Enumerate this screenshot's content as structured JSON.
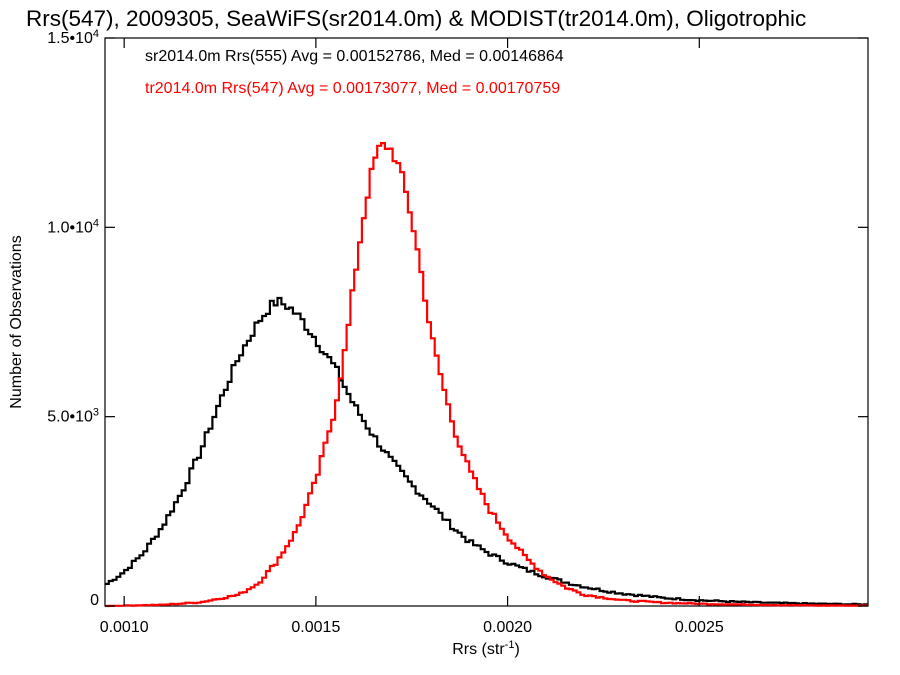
{
  "chart_data": {
    "type": "line",
    "title": "Rrs(547), 2009305, SeaWiFS(sr2014.0m) & MODIST(tr2014.0m), Oligotrophic",
    "xlabel": {
      "main": "Rrs (str",
      "sup": "-1",
      "close": ")"
    },
    "ylabel": "Number of Observations",
    "xlim": [
      0.00095,
      0.00294
    ],
    "ylim": [
      0,
      15000
    ],
    "x_ticks": [
      {
        "value": 0.001,
        "label": "0.0010"
      },
      {
        "value": 0.0015,
        "label": "0.0015"
      },
      {
        "value": 0.002,
        "label": "0.0020"
      },
      {
        "value": 0.0025,
        "label": "0.0025"
      }
    ],
    "y_ticks": [
      {
        "value": 0,
        "base": "0",
        "exp": ""
      },
      {
        "value": 5000,
        "base": "5.0•10",
        "exp": "3"
      },
      {
        "value": 10000,
        "base": "1.0•10",
        "exp": "4"
      },
      {
        "value": 15000,
        "base": "1.5•10",
        "exp": "4"
      }
    ],
    "series": [
      {
        "name": "sr2014.0m Rrs(555) Avg = 0.00152786, Med = 0.00146864",
        "color": "#000000",
        "points": [
          [
            0.00095,
            550
          ],
          [
            0.001,
            900
          ],
          [
            0.00105,
            1400
          ],
          [
            0.0011,
            2100
          ],
          [
            0.00115,
            3000
          ],
          [
            0.0012,
            4100
          ],
          [
            0.00125,
            5400
          ],
          [
            0.0013,
            6600
          ],
          [
            0.00135,
            7500
          ],
          [
            0.00138,
            7900
          ],
          [
            0.0014,
            8050
          ],
          [
            0.00143,
            7900
          ],
          [
            0.00146,
            7600
          ],
          [
            0.0015,
            7050
          ],
          [
            0.00155,
            6300
          ],
          [
            0.0016,
            5300
          ],
          [
            0.00165,
            4500
          ],
          [
            0.0017,
            3800
          ],
          [
            0.00175,
            3200
          ],
          [
            0.0018,
            2700
          ],
          [
            0.00185,
            2150
          ],
          [
            0.0019,
            1700
          ],
          [
            0.00195,
            1400
          ],
          [
            0.002,
            1150
          ],
          [
            0.00205,
            950
          ],
          [
            0.0021,
            780
          ],
          [
            0.00215,
            630
          ],
          [
            0.0022,
            510
          ],
          [
            0.00225,
            410
          ],
          [
            0.0023,
            330
          ],
          [
            0.0024,
            220
          ],
          [
            0.0025,
            150
          ],
          [
            0.0026,
            110
          ],
          [
            0.0027,
            80
          ],
          [
            0.0028,
            60
          ],
          [
            0.00294,
            40
          ]
        ]
      },
      {
        "name": "tr2014.0m Rrs(547) Avg = 0.00173077, Med = 0.00170759",
        "color": "#ff0000",
        "points": [
          [
            0.00095,
            0
          ],
          [
            0.0011,
            30
          ],
          [
            0.0012,
            100
          ],
          [
            0.0013,
            300
          ],
          [
            0.00135,
            600
          ],
          [
            0.0014,
            1200
          ],
          [
            0.00145,
            2000
          ],
          [
            0.0015,
            3300
          ],
          [
            0.00155,
            5200
          ],
          [
            0.00158,
            7000
          ],
          [
            0.0016,
            8600
          ],
          [
            0.00162,
            10000
          ],
          [
            0.00164,
            11200
          ],
          [
            0.00166,
            12000
          ],
          [
            0.00168,
            12200
          ],
          [
            0.0017,
            12000
          ],
          [
            0.00172,
            11500
          ],
          [
            0.00174,
            10700
          ],
          [
            0.00176,
            9700
          ],
          [
            0.00178,
            8500
          ],
          [
            0.0018,
            7200
          ],
          [
            0.00183,
            5900
          ],
          [
            0.00186,
            4700
          ],
          [
            0.0019,
            3600
          ],
          [
            0.00195,
            2600
          ],
          [
            0.002,
            1850
          ],
          [
            0.00205,
            1250
          ],
          [
            0.0021,
            800
          ],
          [
            0.00215,
            500
          ],
          [
            0.0022,
            300
          ],
          [
            0.0023,
            150
          ],
          [
            0.0024,
            90
          ],
          [
            0.0025,
            60
          ],
          [
            0.0026,
            40
          ],
          [
            0.0027,
            25
          ],
          [
            0.0028,
            15
          ],
          [
            0.00294,
            10
          ]
        ]
      }
    ],
    "grid": false,
    "legend_placement": "top-left"
  }
}
